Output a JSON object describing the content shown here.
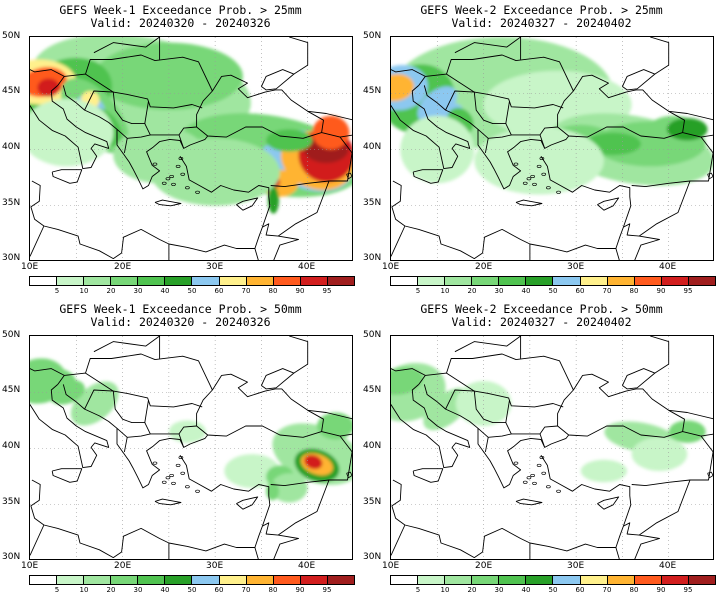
{
  "panels": [
    {
      "title": "GEFS Week-1 Exceedance Prob. > 25mm",
      "valid": "Valid: 20240320 - 20240326"
    },
    {
      "title": "GEFS Week-2 Exceedance Prob. > 25mm",
      "valid": "Valid: 20240327 - 20240402"
    },
    {
      "title": "GEFS Week-1 Exceedance Prob. > 50mm",
      "valid": "Valid: 20240320 - 20240326"
    },
    {
      "title": "GEFS Week-2 Exceedance Prob. > 50mm",
      "valid": "Valid: 20240327 - 20240402"
    }
  ],
  "axes": {
    "lat_labels": [
      "50N",
      "45N",
      "40N",
      "35N",
      "30N"
    ],
    "lon_labels": [
      "10E",
      "20E",
      "30E",
      "40E"
    ]
  },
  "colorbar": {
    "labels": [
      "5",
      "10",
      "20",
      "30",
      "40",
      "50",
      "60",
      "70",
      "80",
      "90",
      "95"
    ],
    "colors": [
      "#ffffff",
      "#c8f5c8",
      "#a0e6a0",
      "#78d778",
      "#50c350",
      "#28a028",
      "#8cc8f0",
      "#fff08c",
      "#ffb432",
      "#ff5a1e",
      "#d21e1e",
      "#a01e1e"
    ]
  }
}
